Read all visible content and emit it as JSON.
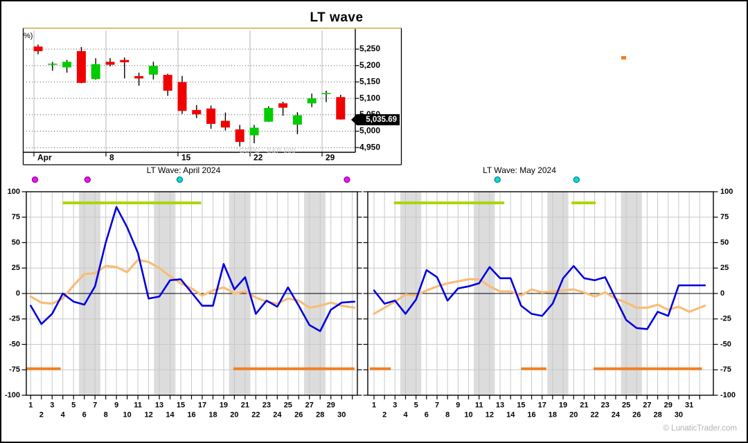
{
  "page": {
    "title": "LT wave",
    "copyright": "© LunaticTrader.com"
  },
  "colors": {
    "up": "#00cc00",
    "down": "#f10000",
    "wick": "#000000",
    "wave_line": "#0000e0",
    "average_line": "#f8bc78",
    "green_segment": "#aad500",
    "orange_segment": "#f28022",
    "weekend_band": "#dcdcdc",
    "gridline": "#c8c8c8",
    "magenta_dot": "#e816e8",
    "magenta_dot_border": "#a000a0",
    "cyan_dot": "#00dede",
    "cyan_dot_border": "#008888",
    "tag_bg": "#000000",
    "tag_text": "#ffffff",
    "top_rule": "#d9bc6e",
    "watermark": "#c9c9c9"
  },
  "chart_data": [
    {
      "type": "candlestick",
      "title": "LT wave",
      "unit_label": "%)",
      "watermark": "^GSPC - S&P 500",
      "month": "April 2024",
      "x_ticks": [
        "Apr",
        "8",
        "15",
        "22",
        "29"
      ],
      "y_ticks": [
        "5,250",
        "5,200",
        "5,150",
        "5,100",
        "5,050",
        "5,000",
        "4,950"
      ],
      "y_max": 5250,
      "y_min": 4950,
      "y_step": 50,
      "last_price_label": "5,035.69",
      "last_price_value": 5035.69,
      "days": [
        1,
        2,
        3,
        4,
        5,
        8,
        9,
        10,
        11,
        12,
        15,
        16,
        17,
        18,
        19,
        22,
        23,
        24,
        25,
        26,
        29,
        30
      ],
      "ohlc": [
        [
          5258.0,
          5264.0,
          5234.3,
          5243.8
        ],
        [
          5204.3,
          5211.0,
          5184.1,
          5205.8
        ],
        [
          5194.4,
          5217.0,
          5178.4,
          5211.5
        ],
        [
          5244.1,
          5256.6,
          5146.1,
          5147.2
        ],
        [
          5159.0,
          5222.2,
          5157.2,
          5204.3
        ],
        [
          5211.4,
          5222.6,
          5197.4,
          5202.4
        ],
        [
          5217.0,
          5224.8,
          5160.8,
          5209.9
        ],
        [
          5167.9,
          5178.4,
          5138.7,
          5160.6
        ],
        [
          5172.3,
          5211.8,
          5157.7,
          5199.1
        ],
        [
          5171.6,
          5175.0,
          5107.9,
          5123.4
        ],
        [
          5149.7,
          5168.4,
          5052.5,
          5061.8
        ],
        [
          5064.6,
          5079.8,
          5039.8,
          5051.4
        ],
        [
          5069.0,
          5078.0,
          5007.3,
          5022.2
        ],
        [
          5031.5,
          5056.7,
          5001.9,
          5011.1
        ],
        [
          5005.4,
          5019.0,
          4953.6,
          4967.2
        ],
        [
          4987.3,
          5019.0,
          4963.0,
          5010.6
        ],
        [
          5028.9,
          5076.1,
          5028.0,
          5070.6
        ],
        [
          5084.9,
          5089.5,
          5047.0,
          5071.6
        ],
        [
          5019.9,
          5057.8,
          4990.6,
          5048.4
        ],
        [
          5084.7,
          5114.6,
          5073.1,
          5100.0
        ],
        [
          5114.1,
          5123.5,
          5088.7,
          5116.2
        ],
        [
          5103.8,
          5110.8,
          5035.3,
          5035.7
        ]
      ]
    },
    {
      "type": "line",
      "title": "LT Wave: April 2024",
      "month_days": 30,
      "ylim": [
        -100,
        100
      ],
      "y_step": 25,
      "y_tick_labels": [
        100,
        75,
        50,
        25,
        0,
        -25,
        -50,
        -75,
        -100
      ],
      "weekend_bands": [
        [
          5.5,
          7.5
        ],
        [
          12.5,
          14.5
        ],
        [
          19.5,
          21.5
        ],
        [
          26.5,
          28.5
        ]
      ],
      "green_level": 89,
      "green_segments": [
        [
          4.0,
          16.9
        ]
      ],
      "orange_level": -74,
      "orange_segments": [
        [
          0.55,
          3.8
        ],
        [
          19.9,
          31.2
        ]
      ],
      "markers": [
        {
          "day": 1.4,
          "color": "magenta"
        },
        {
          "day": 6.3,
          "color": "magenta"
        },
        {
          "day": 14.9,
          "color": "cyan"
        },
        {
          "day": 30.5,
          "color": "magenta"
        }
      ],
      "series": [
        {
          "name": "average",
          "color_key": "average_line",
          "width": 3.2,
          "values": [
            -3,
            -9,
            -10,
            -5,
            8,
            19,
            20,
            27,
            26,
            21,
            33,
            31,
            25,
            17,
            10,
            5,
            -2,
            3,
            6,
            0,
            2,
            -4,
            -8,
            -10,
            -5,
            -7,
            -14,
            -12,
            -9,
            -12
          ],
          "end_extension": {
            "day": 31.2,
            "value": -14
          }
        },
        {
          "name": "wave",
          "color_key": "wave_line",
          "width": 2.6,
          "values": [
            -12,
            -30,
            -20,
            0,
            -8,
            -11,
            7,
            50,
            85,
            65,
            40,
            -5,
            -3,
            13,
            14,
            1,
            -12,
            -12,
            29,
            4,
            16,
            -20,
            -7,
            -13,
            6,
            -12,
            -31,
            -37,
            -16,
            -9
          ],
          "end_extension": {
            "day": 31.2,
            "value": -8
          }
        }
      ]
    },
    {
      "type": "line",
      "title": "LT Wave: May 2024",
      "month_days": 31,
      "ylim": [
        -100,
        100
      ],
      "y_step": 25,
      "y_tick_labels": [
        100,
        75,
        50,
        25,
        0,
        -25,
        -50,
        -75,
        -100
      ],
      "weekend_bands": [
        [
          3.5,
          5.5
        ],
        [
          10.5,
          12.5
        ],
        [
          17.5,
          19.5
        ],
        [
          24.5,
          26.5
        ]
      ],
      "green_level": 89,
      "green_segments": [
        [
          2.9,
          13.4
        ],
        [
          19.8,
          22.1
        ]
      ],
      "orange_level": -74,
      "orange_segments": [
        [
          0.6,
          2.6
        ],
        [
          15.0,
          17.4
        ],
        [
          21.9,
          32.2
        ]
      ],
      "markers": [
        {
          "day": 12.75,
          "color": "cyan"
        },
        {
          "day": 20.27,
          "color": "cyan"
        }
      ],
      "series": [
        {
          "name": "average",
          "color_key": "average_line",
          "width": 3.2,
          "values": [
            -20,
            -14,
            -8,
            -1,
            -2,
            3,
            7,
            10,
            12,
            14,
            14,
            7,
            2,
            2,
            -2,
            4,
            1,
            2,
            3,
            4,
            1,
            -3,
            1,
            -5,
            -9,
            -14,
            -14,
            -11,
            -16,
            -13,
            -18
          ],
          "end_extension": {
            "day": 32.5,
            "value": -12
          }
        },
        {
          "name": "wave",
          "color_key": "wave_line",
          "width": 2.6,
          "values": [
            3,
            -10,
            -7,
            -20,
            -6,
            23,
            16,
            -7,
            5,
            7,
            10,
            26,
            15,
            15,
            -12,
            -20,
            -22,
            -10,
            15,
            27,
            15,
            13,
            16,
            -5,
            -26,
            -34,
            -35,
            -18,
            -22,
            8,
            8
          ],
          "end_extension": {
            "day": 32.5,
            "value": 8
          }
        }
      ]
    }
  ]
}
